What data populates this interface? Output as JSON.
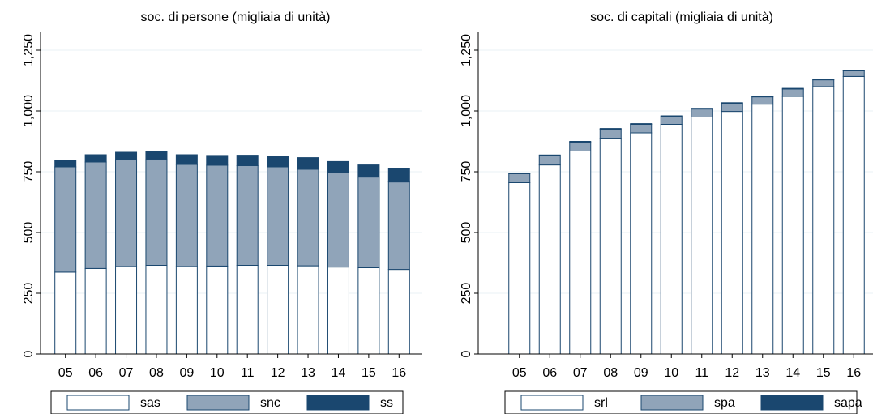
{
  "chart_data": [
    {
      "type": "stacked_bar",
      "title": "soc. di persone (migliaia di unità)",
      "categories": [
        "05",
        "06",
        "07",
        "08",
        "09",
        "10",
        "11",
        "12",
        "13",
        "14",
        "15",
        "16"
      ],
      "series": [
        {
          "name": "sas",
          "color": "#ffffff",
          "values": [
            337,
            352,
            360,
            365,
            360,
            362,
            365,
            365,
            363,
            358,
            355,
            348
          ]
        },
        {
          "name": "snc",
          "color": "#90a4b9",
          "values": [
            433,
            438,
            440,
            437,
            420,
            415,
            410,
            405,
            397,
            388,
            373,
            360
          ]
        },
        {
          "name": "ss",
          "color": "#1a476f",
          "values": [
            27,
            30,
            30,
            33,
            40,
            40,
            43,
            45,
            48,
            46,
            50,
            57
          ]
        }
      ],
      "ylim": [
        0,
        1250
      ],
      "yticks": [
        0,
        250,
        500,
        750,
        {
          "value": 1000,
          "label": "1,000"
        },
        {
          "value": 1250,
          "label": "1,250"
        }
      ],
      "grid": true
    },
    {
      "type": "stacked_bar",
      "title": "soc. di capitali (migliaia di unità)",
      "categories": [
        "05",
        "06",
        "07",
        "08",
        "09",
        "10",
        "11",
        "12",
        "13",
        "14",
        "15",
        "16"
      ],
      "series": [
        {
          "name": "srl",
          "color": "#ffffff",
          "values": [
            705,
            778,
            835,
            888,
            910,
            945,
            975,
            998,
            1028,
            1060,
            1100,
            1142
          ]
        },
        {
          "name": "spa",
          "color": "#90a4b9",
          "values": [
            37,
            38,
            37,
            37,
            35,
            32,
            33,
            33,
            30,
            30,
            28,
            23
          ]
        },
        {
          "name": "sapa",
          "color": "#1a476f",
          "values": [
            3,
            3,
            3,
            3,
            3,
            3,
            3,
            3,
            3,
            3,
            3,
            3
          ]
        }
      ],
      "ylim": [
        0,
        1250
      ],
      "yticks": [
        0,
        250,
        500,
        750,
        {
          "value": 1000,
          "label": "1,000"
        },
        {
          "value": 1250,
          "label": "1,250"
        }
      ],
      "grid": true
    }
  ]
}
